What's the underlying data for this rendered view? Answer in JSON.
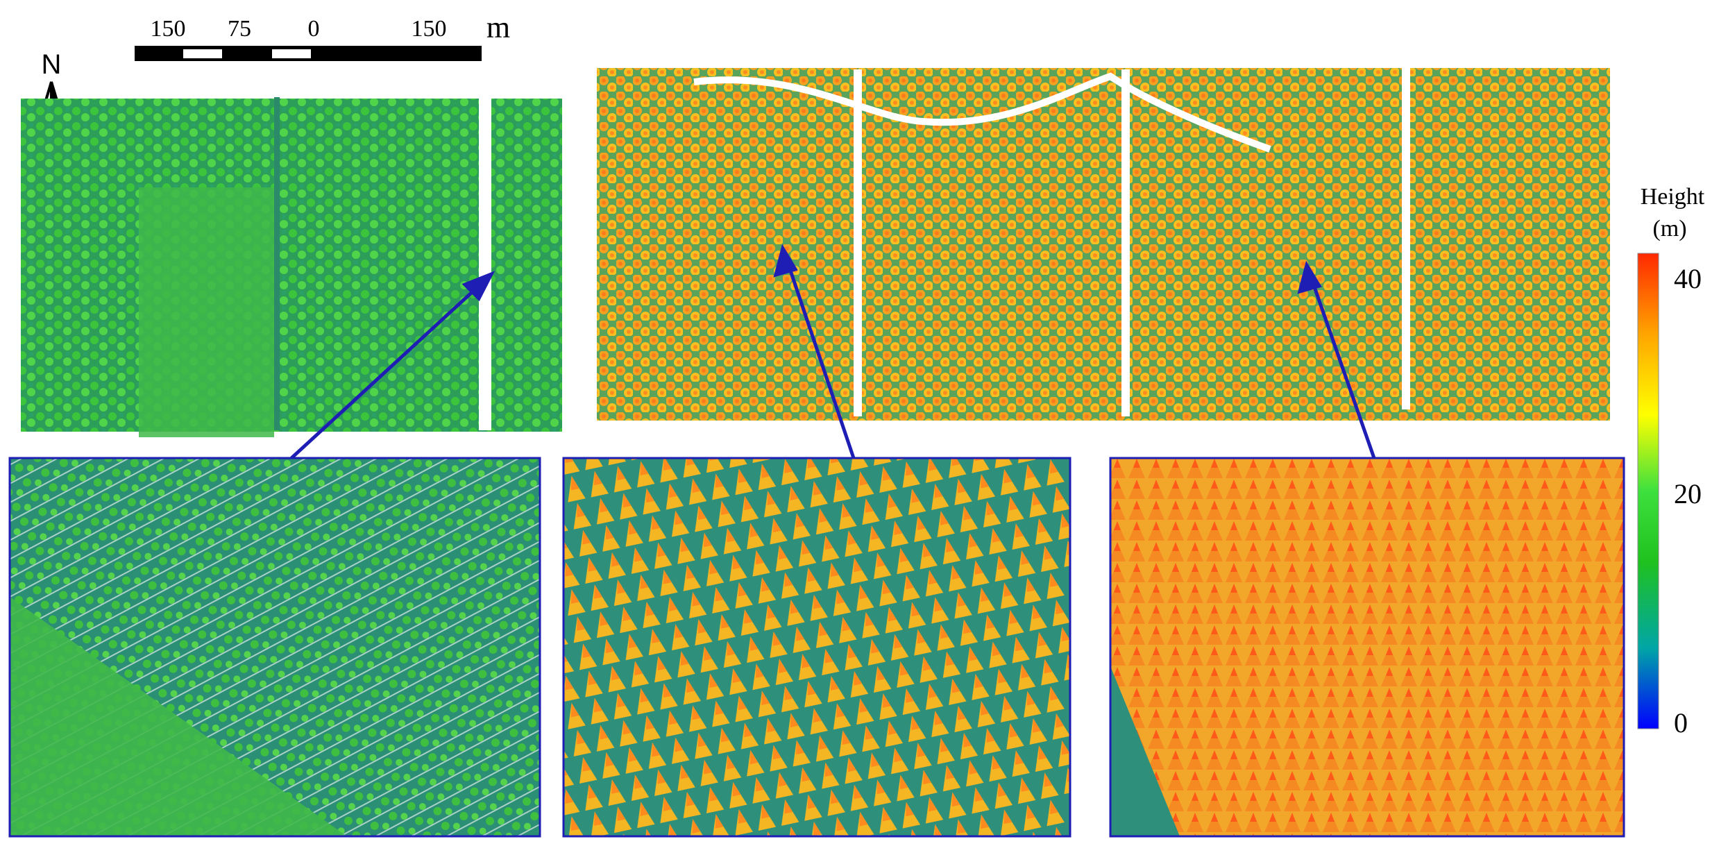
{
  "scale_bar": {
    "labels": [
      "150",
      "75",
      "0",
      "150"
    ],
    "unit": "m"
  },
  "north_arrow": {
    "label": "N",
    "icon": "north-arrow-icon"
  },
  "legend": {
    "title": "Height",
    "unit": "(m)",
    "ticks": [
      "40",
      "20",
      "0"
    ],
    "colormap": [
      "#0000ff",
      "#00a6a6",
      "#1fc11f",
      "#3ee03e",
      "#ffff00",
      "#ffa500",
      "#ff2800"
    ]
  },
  "panels": [
    {
      "name": "broadleaf-forest-plot",
      "dominant_color": "#2ec02e"
    },
    {
      "name": "conifer-plantation-rows",
      "dominant_color": "#f6b41e"
    },
    {
      "name": "dense-conifer-forest",
      "dominant_color": "#f08a1e"
    }
  ],
  "colors": {
    "frame": "#1e1eb4",
    "arrow": "#1e1eb4"
  }
}
